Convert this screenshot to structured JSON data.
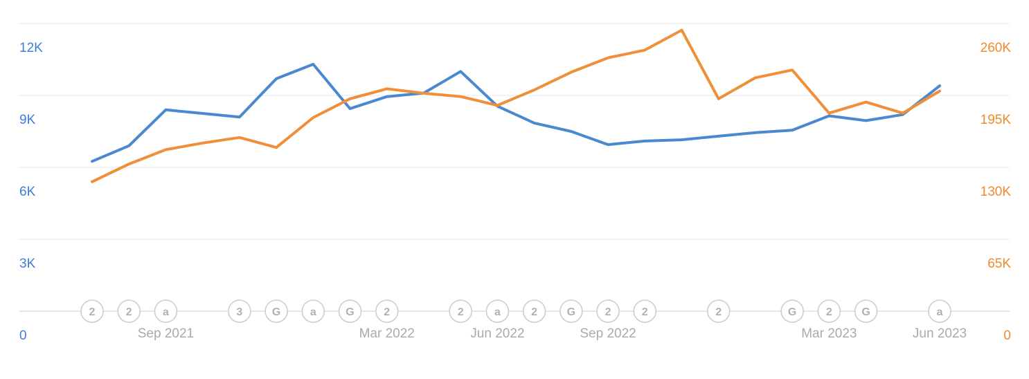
{
  "colors": {
    "blue_line": "#4a88cf",
    "orange_line": "#ef9038",
    "left_axis_text": "#3e7ed6",
    "right_axis_text": "#ef8b2b",
    "gridline": "#ededed",
    "axis_line": "#dddddd",
    "date_text": "#a9aaad",
    "marker_border": "#cdcdcd",
    "marker_glyph": "#b1b1b1",
    "marker_fill": "#ffffff"
  },
  "chart_data": {
    "type": "line",
    "title": "",
    "xlabel": "",
    "ylabel_left": "",
    "ylabel_right": "",
    "grid": true,
    "legend": "none",
    "x": [
      "Jul 2021",
      "Aug 2021",
      "Sep 2021",
      "Oct 2021",
      "Nov 2021",
      "Dec 2021",
      "Jan 2022",
      "Feb 2022",
      "Mar 2022",
      "Apr 2022",
      "May 2022",
      "Jun 2022",
      "Jul 2022",
      "Aug 2022",
      "Sep 2022",
      "Oct 2022",
      "Nov 2022",
      "Dec 2022",
      "Jan 2023",
      "Feb 2023",
      "Mar 2023",
      "Apr 2023",
      "May 2023",
      "Jun 2023"
    ],
    "series": [
      {
        "id": "left-axis-series",
        "axis": "left",
        "color_key": "blue_line",
        "values": [
          6250,
          6900,
          8400,
          8250,
          8100,
          9700,
          10300,
          8450,
          8950,
          9100,
          10000,
          8550,
          7850,
          7500,
          6950,
          7100,
          7150,
          7300,
          7450,
          7550,
          8150,
          7950,
          8200,
          9400
        ]
      },
      {
        "id": "right-axis-series",
        "axis": "right",
        "color_key": "orange_line",
        "values": [
          117000,
          133000,
          146000,
          152000,
          157000,
          148000,
          175000,
          192000,
          201000,
          197000,
          194000,
          186000,
          200000,
          216000,
          229000,
          236000,
          254000,
          192000,
          211000,
          218000,
          179000,
          189000,
          179000,
          199000
        ]
      }
    ],
    "left_axis": {
      "range": [
        0,
        12000
      ],
      "ticks": [
        {
          "value": 12000,
          "label": "12K"
        },
        {
          "value": 9000,
          "label": "9K"
        },
        {
          "value": 6000,
          "label": "6K"
        },
        {
          "value": 3000,
          "label": "3K"
        },
        {
          "value": 0,
          "label": "0"
        }
      ]
    },
    "right_axis": {
      "range": [
        0,
        260000
      ],
      "ticks": [
        {
          "value": 260000,
          "label": "260K"
        },
        {
          "value": 195000,
          "label": "195K"
        },
        {
          "value": 130000,
          "label": "130K"
        },
        {
          "value": 65000,
          "label": "65K"
        },
        {
          "value": 0,
          "label": "0"
        }
      ]
    },
    "x_tick_labels": [
      {
        "index": 2,
        "label": "Sep 2021"
      },
      {
        "index": 8,
        "label": "Mar 2022"
      },
      {
        "index": 11,
        "label": "Jun 2022"
      },
      {
        "index": 14,
        "label": "Sep 2022"
      },
      {
        "index": 20,
        "label": "Mar 2023"
      },
      {
        "index": 23,
        "label": "Jun 2023"
      }
    ],
    "timeline_markers": [
      {
        "index": 0,
        "glyph": "2"
      },
      {
        "index": 1,
        "glyph": "2"
      },
      {
        "index": 2,
        "glyph": "a"
      },
      {
        "index": 4,
        "glyph": "3"
      },
      {
        "index": 5,
        "glyph": "G"
      },
      {
        "index": 6,
        "glyph": "a"
      },
      {
        "index": 7,
        "glyph": "G"
      },
      {
        "index": 8,
        "glyph": "2"
      },
      {
        "index": 10,
        "glyph": "2"
      },
      {
        "index": 11,
        "glyph": "a"
      },
      {
        "index": 12,
        "glyph": "2"
      },
      {
        "index": 13,
        "glyph": "G"
      },
      {
        "index": 14,
        "glyph": "2"
      },
      {
        "index": 15,
        "glyph": "2"
      },
      {
        "index": 17,
        "glyph": "2"
      },
      {
        "index": 19,
        "glyph": "G"
      },
      {
        "index": 20,
        "glyph": "2"
      },
      {
        "index": 21,
        "glyph": "G"
      },
      {
        "index": 23,
        "glyph": "a"
      }
    ]
  }
}
